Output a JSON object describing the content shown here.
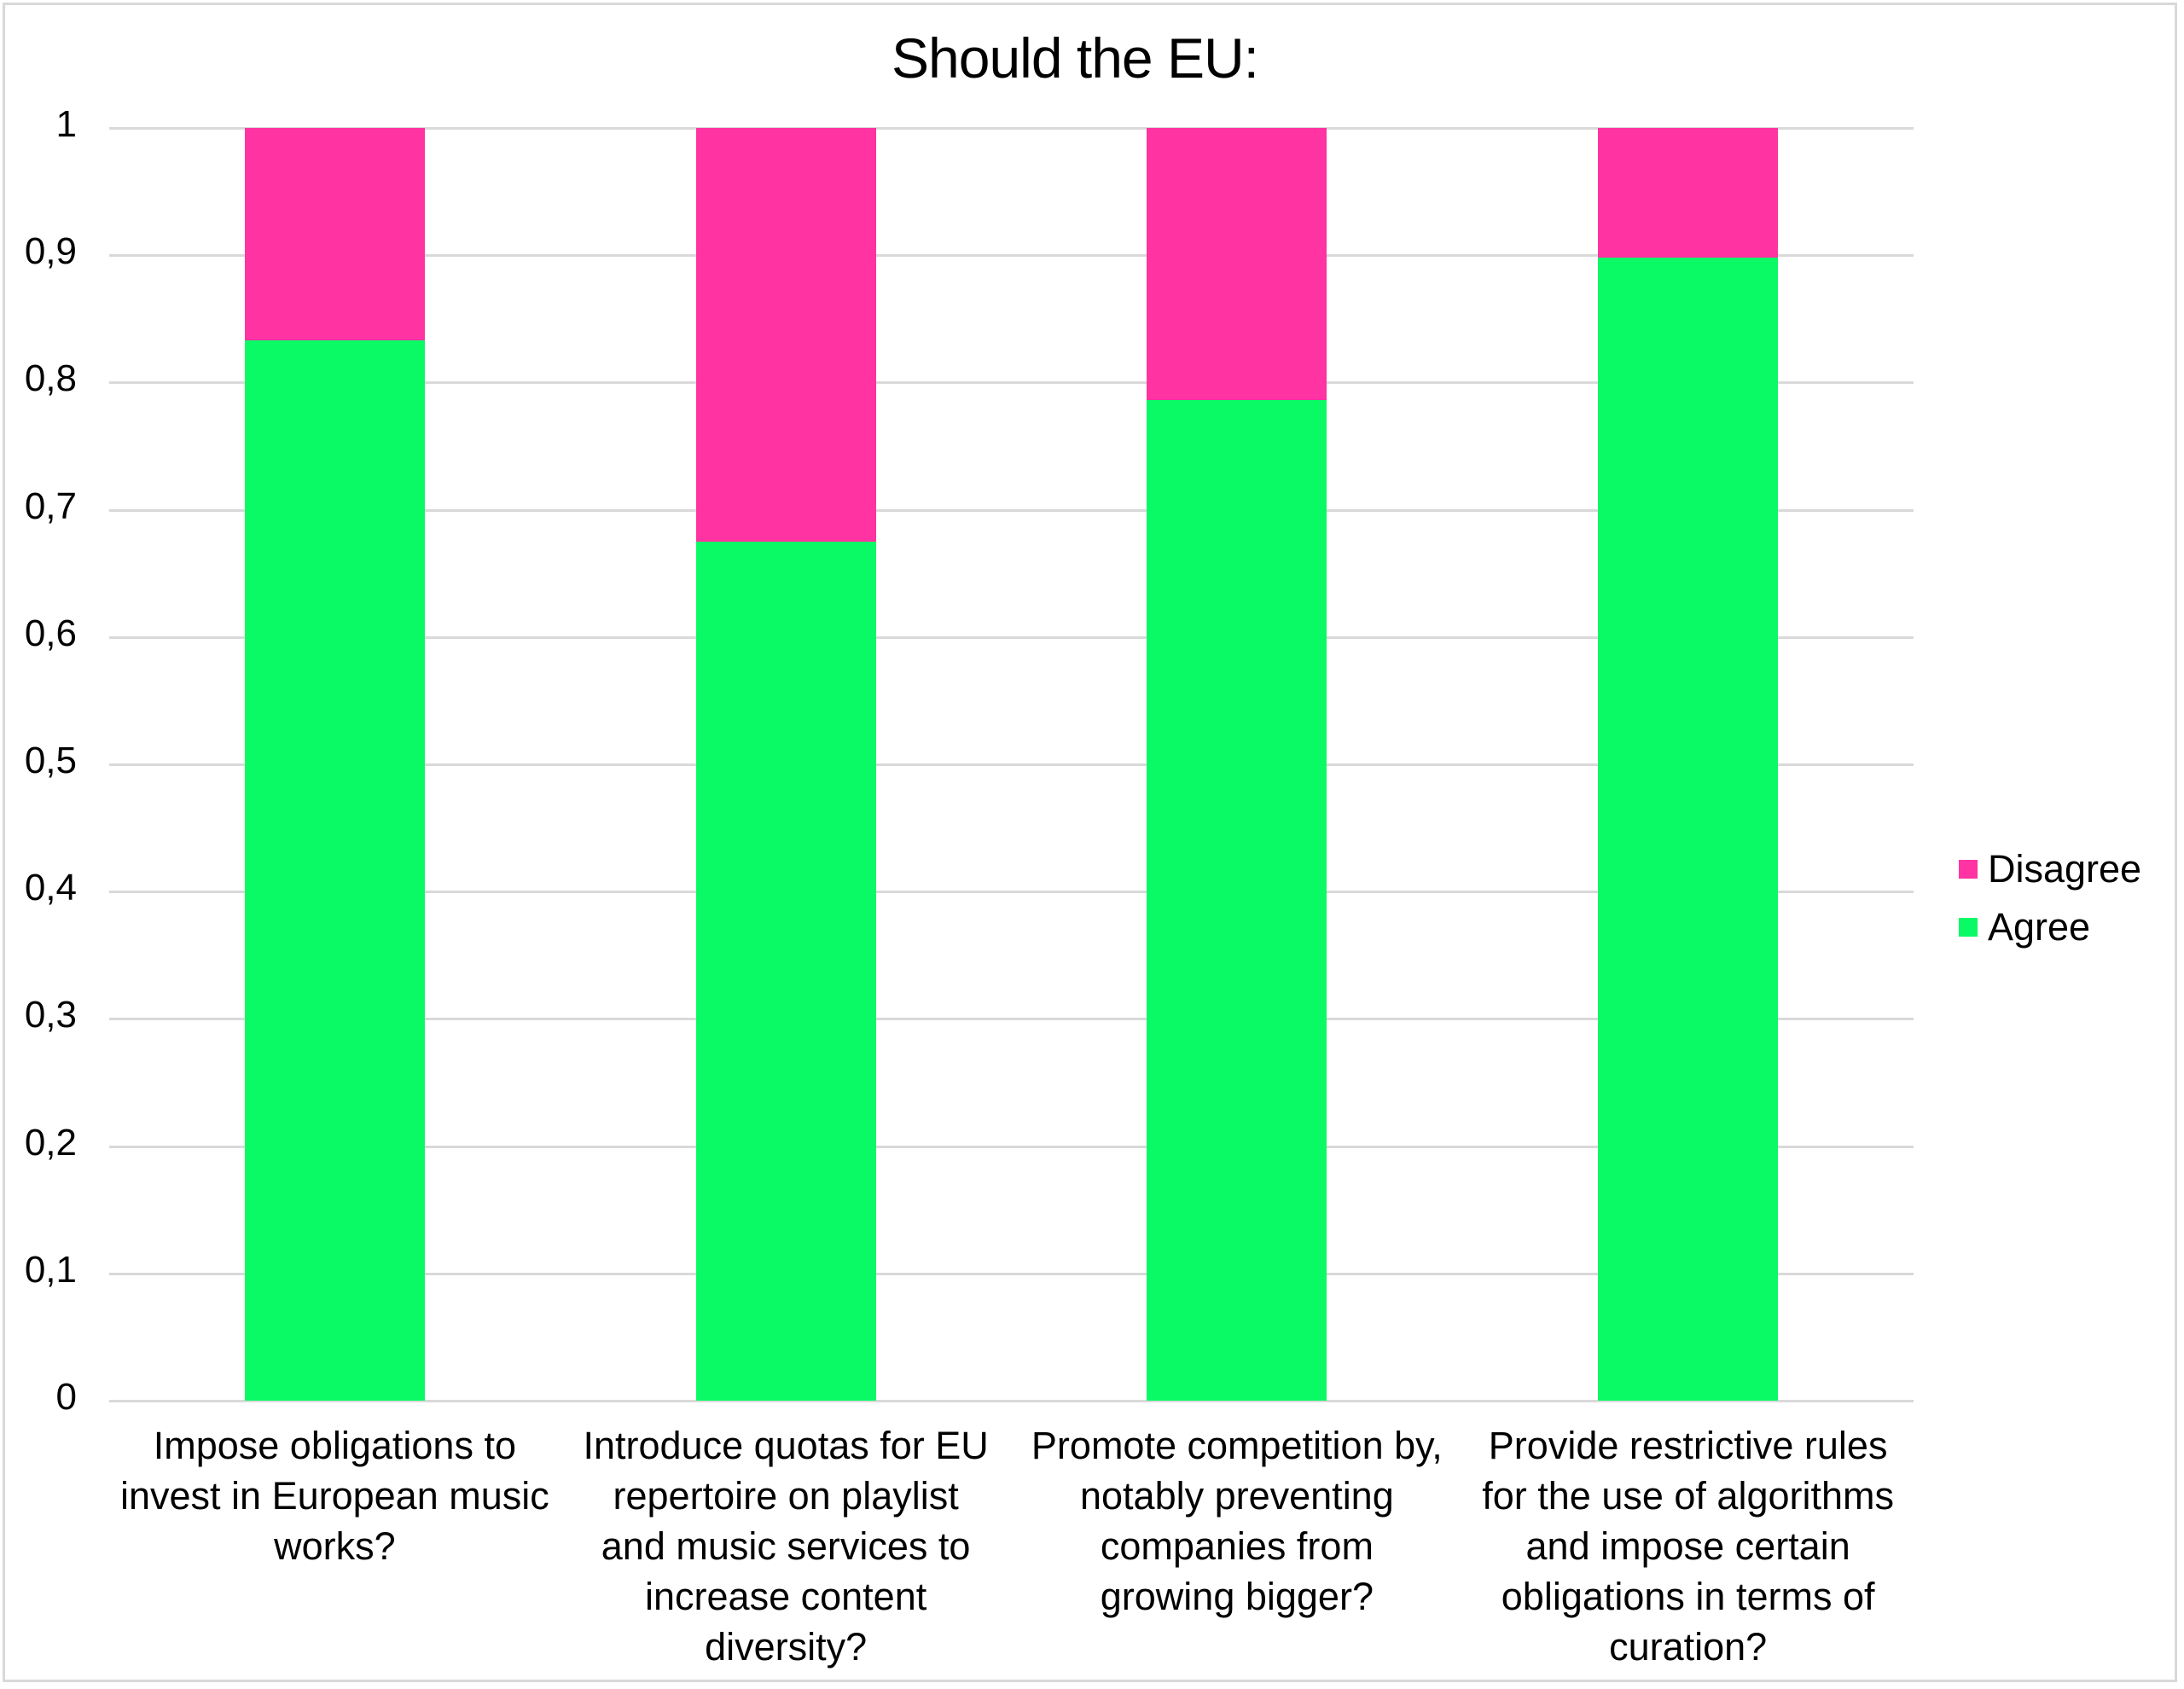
{
  "chart_data": {
    "type": "bar",
    "stacked": true,
    "title": "Should the EU:",
    "xlabel": "",
    "ylabel": "",
    "ylim": [
      0,
      1
    ],
    "yticks": [
      "0",
      "0,1",
      "0,2",
      "0,3",
      "0,4",
      "0,5",
      "0,6",
      "0,7",
      "0,8",
      "0,9",
      "1"
    ],
    "grid": true,
    "legend_position": "right",
    "categories": [
      "Impose obligations to invest in European music works?",
      "Introduce quotas for EU repertoire on playlist and music services to increase content diversity?",
      "Promote competition by, notably preventing companies from growing bigger?",
      "Provide restrictive rules for the use of algorithms and impose certain obligations in terms of curation?"
    ],
    "series": [
      {
        "name": "Agree",
        "color": "#0AFA66",
        "values": [
          0.833,
          0.675,
          0.786,
          0.898
        ]
      },
      {
        "name": "Disagree",
        "color": "#FF33A1",
        "values": [
          0.167,
          0.325,
          0.214,
          0.102
        ]
      }
    ]
  },
  "title": "Should the EU:",
  "yaxis": {
    "ticks": [
      {
        "label": "0",
        "value": 0
      },
      {
        "label": "0,1",
        "value": 0.1
      },
      {
        "label": "0,2",
        "value": 0.2
      },
      {
        "label": "0,3",
        "value": 0.3
      },
      {
        "label": "0,4",
        "value": 0.4
      },
      {
        "label": "0,5",
        "value": 0.5
      },
      {
        "label": "0,6",
        "value": 0.6
      },
      {
        "label": "0,7",
        "value": 0.7
      },
      {
        "label": "0,8",
        "value": 0.8
      },
      {
        "label": "0,9",
        "value": 0.9
      },
      {
        "label": "1",
        "value": 1
      }
    ]
  },
  "xaxis": {
    "labels": [
      [
        "Impose obligations to",
        "invest in European music",
        "works?"
      ],
      [
        "Introduce quotas for EU",
        "repertoire on playlist",
        "and music services to",
        "increase content",
        "diversity?"
      ],
      [
        "Promote competition by,",
        "notably preventing",
        "companies from",
        "growing bigger?"
      ],
      [
        "Provide restrictive rules",
        "for the use of algorithms",
        "and impose certain",
        "obligations in terms of",
        "curation?"
      ]
    ]
  },
  "legend": {
    "items": [
      {
        "label": "Disagree",
        "color": "#FF33A1"
      },
      {
        "label": "Agree",
        "color": "#0AFA66"
      }
    ]
  },
  "colors": {
    "agree": "#0AFA66",
    "disagree": "#FF33A1",
    "grid": "#D9D9D9",
    "border": "#D9D9D9"
  }
}
